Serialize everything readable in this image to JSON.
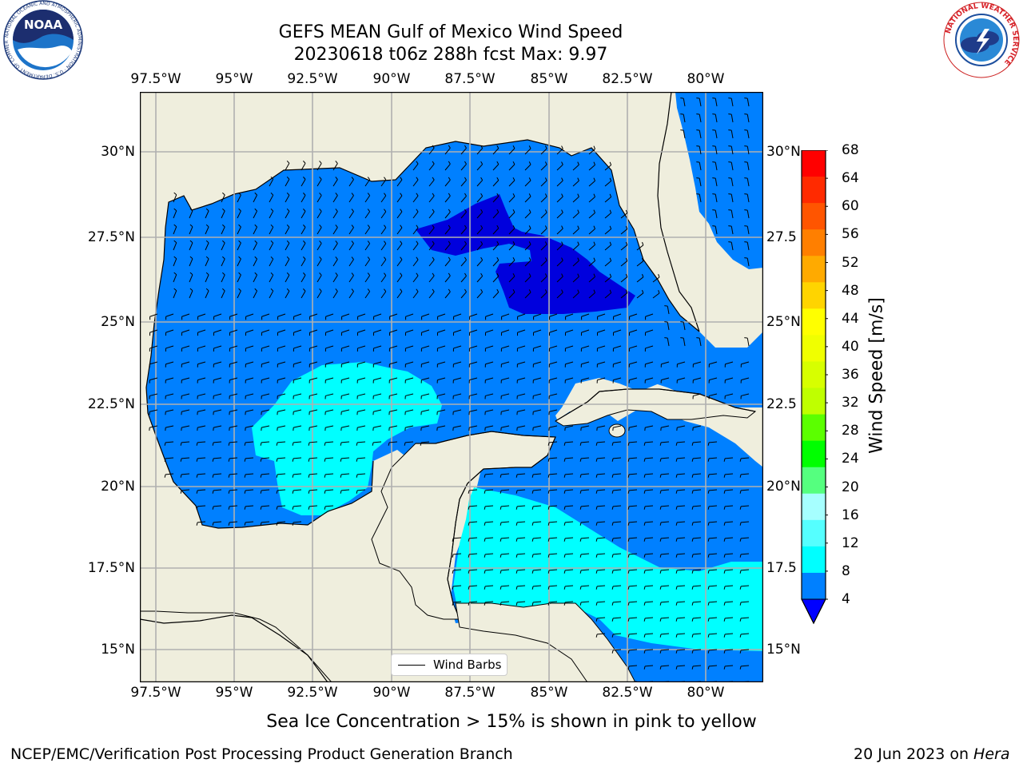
{
  "title": {
    "line1": "GEFS MEAN Gulf of Mexico Wind Speed",
    "line2": "20230618 t06z 288h fcst   Max: 9.97"
  },
  "logos": {
    "left": {
      "name": "NOAA",
      "ring_text": "NATIONAL OCEANIC AND ATMOSPHERIC ADMINISTRATION · U.S. DEPARTMENT OF COMMERCE"
    },
    "right": {
      "ring_text": "NATIONAL WEATHER SERVICE"
    }
  },
  "axes": {
    "lon_labels": [
      "97.5°W",
      "95°W",
      "92.5°W",
      "90°W",
      "87.5°W",
      "85°W",
      "82.5°W",
      "80°W"
    ],
    "lat_labels_left": [
      "30°N",
      "27.5°N",
      "25°N",
      "22.5°N",
      "20°N",
      "17.5°N",
      "15°N"
    ],
    "lat_labels_right": [
      "30°N",
      "27.5",
      "25°N",
      "22.5",
      "20°N",
      "17.5",
      "15°N"
    ]
  },
  "legend": {
    "label": "Wind Barbs"
  },
  "colorbar": {
    "label": "Wind Speed [m/s]",
    "ticks": [
      "68",
      "64",
      "60",
      "56",
      "52",
      "48",
      "44",
      "40",
      "36",
      "32",
      "28",
      "24",
      "20",
      "16",
      "12",
      "8",
      "4"
    ],
    "colors": [
      "#ff0000",
      "#ff2a00",
      "#ff5500",
      "#ff7f00",
      "#ffaa00",
      "#ffd400",
      "#ffff00",
      "#f0ff00",
      "#d7ff00",
      "#bfff00",
      "#5bff00",
      "#00ff00",
      "#55ff7f",
      "#a6ffff",
      "#55ffff",
      "#00ffff",
      "#0080ff"
    ],
    "extend_color": "#0000ff"
  },
  "map_colors": {
    "land": "#efeedd",
    "wind_4_8": "#0080ff",
    "wind_8_12": "#00ffff",
    "wind_below_4": "#0000dd"
  },
  "sea_ice_note": "Sea Ice Concentration > 15% is shown in pink to yellow",
  "footer": {
    "left": "NCEP/EMC/Verification Post Processing Product Generation Branch",
    "right_prefix": "20 Jun 2023 on ",
    "right_host": "Hera"
  }
}
